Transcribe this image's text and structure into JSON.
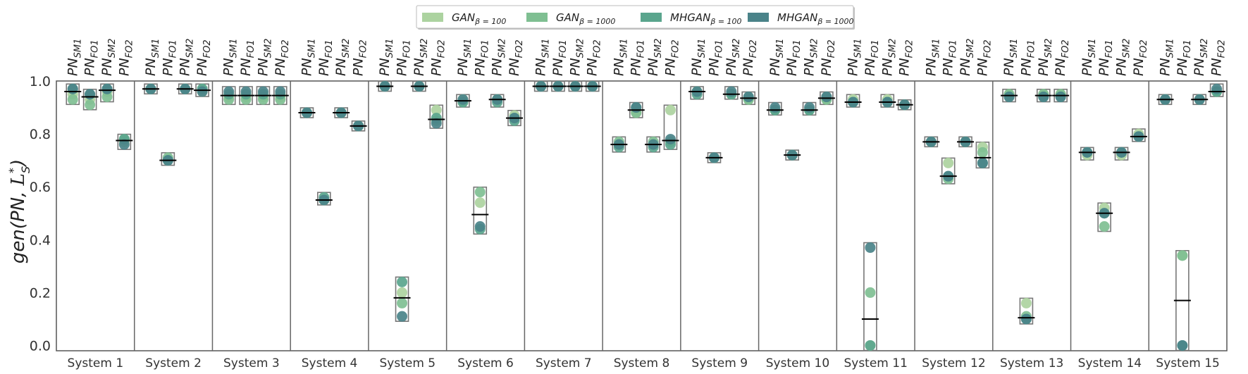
{
  "chart_data": {
    "type": "scatter",
    "ylabel_main": "gen",
    "ylabel_args": "(PN, ",
    "ylabel_L": "L",
    "ylabel_sup": "*",
    "ylabel_sub": "S",
    "ylabel_close": ")",
    "ylim": [
      0,
      1
    ],
    "yticks": [
      "0.0",
      "0.2",
      "0.4",
      "0.6",
      "0.8",
      "1.0"
    ],
    "columns": [
      {
        "base": "PN",
        "sub": "SM1"
      },
      {
        "base": "PN",
        "sub": "FO1"
      },
      {
        "base": "PN",
        "sub": "SM2"
      },
      {
        "base": "PN",
        "sub": "FO2"
      }
    ],
    "legend": [
      {
        "base": "GAN",
        "sub": "β = 100",
        "color": "#acd3a0"
      },
      {
        "base": "GAN",
        "sub": "β = 1000",
        "color": "#7fbf92"
      },
      {
        "base": "MHGAN",
        "sub": "β = 100",
        "color": "#5aa58d"
      },
      {
        "base": "MHGAN",
        "sub": "β = 1000",
        "color": "#4a8389"
      }
    ],
    "systems": [
      {
        "name": "System 1",
        "values": [
          [
            0.95,
            0.93,
            0.97,
            0.97
          ],
          [
            0.93,
            0.91,
            0.95,
            0.95
          ],
          [
            0.96,
            0.94,
            0.97,
            0.97
          ],
          [
            0.77,
            0.78,
            0.78,
            0.76
          ]
        ]
      },
      {
        "name": "System 2",
        "values": [
          [
            0.97,
            0.97,
            0.97,
            0.97
          ],
          [
            0.7,
            0.71,
            0.7,
            0.7
          ],
          [
            0.97,
            0.97,
            0.97,
            0.97
          ],
          [
            0.96,
            0.97,
            0.97,
            0.96
          ]
        ]
      },
      {
        "name": "System 3",
        "values": [
          [
            0.94,
            0.93,
            0.95,
            0.96
          ],
          [
            0.94,
            0.93,
            0.95,
            0.96
          ],
          [
            0.94,
            0.93,
            0.95,
            0.96
          ],
          [
            0.94,
            0.93,
            0.95,
            0.96
          ]
        ]
      },
      {
        "name": "System 4",
        "values": [
          [
            0.88,
            0.88,
            0.88,
            0.88
          ],
          [
            0.55,
            0.55,
            0.56,
            0.55
          ],
          [
            0.88,
            0.88,
            0.88,
            0.88
          ],
          [
            0.83,
            0.83,
            0.83,
            0.83
          ]
        ]
      },
      {
        "name": "System 5",
        "values": [
          [
            0.98,
            0.98,
            0.98,
            0.98
          ],
          [
            0.2,
            0.16,
            0.24,
            0.11
          ],
          [
            0.98,
            0.98,
            0.98,
            0.98
          ],
          [
            0.89,
            0.85,
            0.86,
            0.84
          ]
        ]
      },
      {
        "name": "System 6",
        "values": [
          [
            0.93,
            0.92,
            0.92,
            0.93
          ],
          [
            0.54,
            0.58,
            0.44,
            0.45
          ],
          [
            0.93,
            0.93,
            0.92,
            0.93
          ],
          [
            0.87,
            0.86,
            0.85,
            0.86
          ]
        ]
      },
      {
        "name": "System 7",
        "values": [
          [
            0.98,
            0.98,
            0.98,
            0.98
          ],
          [
            0.98,
            0.98,
            0.98,
            0.98
          ],
          [
            0.98,
            0.98,
            0.98,
            0.98
          ],
          [
            0.98,
            0.98,
            0.98,
            0.98
          ]
        ]
      },
      {
        "name": "System 8",
        "values": [
          [
            0.76,
            0.77,
            0.75,
            0.76
          ],
          [
            0.88,
            0.88,
            0.9,
            0.9
          ],
          [
            0.76,
            0.77,
            0.75,
            0.76
          ],
          [
            0.89,
            0.77,
            0.76,
            0.78
          ]
        ]
      },
      {
        "name": "System 9",
        "values": [
          [
            0.96,
            0.96,
            0.95,
            0.96
          ],
          [
            0.71,
            0.71,
            0.71,
            0.71
          ],
          [
            0.95,
            0.95,
            0.95,
            0.96
          ],
          [
            0.93,
            0.93,
            0.94,
            0.94
          ]
        ]
      },
      {
        "name": "System 10",
        "values": [
          [
            0.89,
            0.89,
            0.89,
            0.9
          ],
          [
            0.72,
            0.72,
            0.72,
            0.72
          ],
          [
            0.89,
            0.89,
            0.89,
            0.9
          ],
          [
            0.93,
            0.93,
            0.94,
            0.94
          ]
        ]
      },
      {
        "name": "System 11",
        "values": [
          [
            0.93,
            0.92,
            0.92,
            0.92
          ],
          [
            0.0,
            0.2,
            0.0,
            0.37
          ],
          [
            0.93,
            0.92,
            0.92,
            0.92
          ],
          [
            0.91,
            0.91,
            0.91,
            0.91
          ]
        ]
      },
      {
        "name": "System 12",
        "values": [
          [
            0.77,
            0.77,
            0.77,
            0.77
          ],
          [
            0.69,
            0.63,
            0.64,
            0.64
          ],
          [
            0.77,
            0.77,
            0.77,
            0.77
          ],
          [
            0.75,
            0.73,
            0.69,
            0.69
          ]
        ]
      },
      {
        "name": "System 13",
        "values": [
          [
            0.95,
            0.95,
            0.94,
            0.94
          ],
          [
            0.16,
            0.11,
            0.1,
            0.1
          ],
          [
            0.95,
            0.95,
            0.94,
            0.94
          ],
          [
            0.95,
            0.95,
            0.94,
            0.94
          ]
        ]
      },
      {
        "name": "System 14",
        "values": [
          [
            0.72,
            0.73,
            0.73,
            0.73
          ],
          [
            0.52,
            0.45,
            0.5,
            0.5
          ],
          [
            0.72,
            0.73,
            0.73,
            0.73
          ],
          [
            0.8,
            0.79,
            0.79,
            0.79
          ]
        ]
      },
      {
        "name": "System 15",
        "values": [
          [
            0.93,
            0.93,
            0.93,
            0.93
          ],
          [
            0.34,
            0.34,
            0.0,
            0.0
          ],
          [
            0.93,
            0.93,
            0.93,
            0.93
          ],
          [
            0.96,
            0.96,
            0.96,
            0.97
          ]
        ]
      }
    ]
  }
}
